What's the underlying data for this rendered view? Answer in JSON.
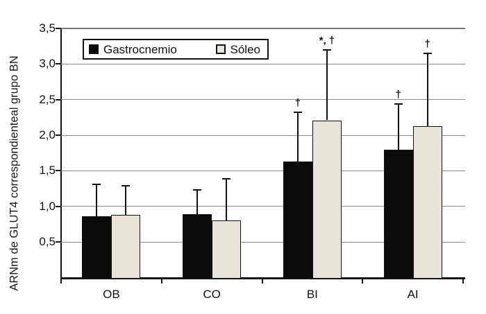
{
  "figure": {
    "background": "#ffffff"
  },
  "chart_data": {
    "type": "bar",
    "title": "",
    "xlabel": "",
    "ylabel": "ARNm de GLUT4 correspondienteal grupo BN",
    "categories": [
      "OB",
      "CO",
      "BI",
      "AI"
    ],
    "series": [
      {
        "name": "Gastrocnemio",
        "color": "#0b0b0b",
        "values": [
          0.86,
          0.89,
          1.63,
          1.8
        ],
        "error_plus": [
          0.45,
          0.34,
          0.69,
          0.64
        ],
        "annotations": [
          "",
          "",
          "†",
          "†"
        ]
      },
      {
        "name": "Sóleo",
        "color": "#e8e4d8",
        "values": [
          0.88,
          0.8,
          2.21,
          2.13
        ],
        "error_plus": [
          0.41,
          0.59,
          0.99,
          1.02
        ],
        "annotations": [
          "",
          "",
          "*, †",
          "†"
        ]
      }
    ],
    "ylim": [
      0,
      3.5
    ],
    "ytick_step": 0.5,
    "ytick_labels": [
      "0,5",
      "1,0",
      "1,5",
      "2,0",
      "2,5",
      "3,0",
      "3,5"
    ],
    "decimal_separator": ",",
    "grid": true,
    "legend_position": "top-left-inside"
  },
  "legend": {
    "items": [
      {
        "label": "Gastrocnemio",
        "swatch": "#0b0b0b"
      },
      {
        "label": "Sóleo",
        "swatch": "#e8e4d8"
      }
    ]
  },
  "colors": {
    "grid": "#8c8c8c",
    "axis": "#151515",
    "annotation": "#111111",
    "bar_border": "#111111"
  }
}
